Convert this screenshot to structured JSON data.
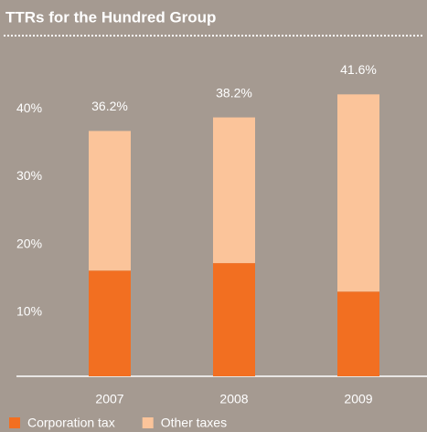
{
  "chart_data": {
    "type": "stacked_bar",
    "title": "TTRs for the Hundred Group",
    "categories": [
      "2007",
      "2008",
      "2009"
    ],
    "series": [
      {
        "name": "Corporation tax",
        "color": "#f26f21",
        "values": [
          15.6,
          16.7,
          12.5
        ]
      },
      {
        "name": "Other taxes",
        "color": "#fbc49a",
        "values": [
          20.6,
          21.5,
          29.1
        ]
      }
    ],
    "totals": [
      36.2,
      38.2,
      41.6
    ],
    "total_labels": [
      "36.2%",
      "38.2%",
      "41.6%"
    ],
    "ylim": [
      0,
      45
    ],
    "yticks": [
      {
        "value": 10,
        "label": "10%"
      },
      {
        "value": 20,
        "label": "20%"
      },
      {
        "value": 30,
        "label": "30%"
      },
      {
        "value": 40,
        "label": "40%"
      }
    ],
    "legend": "bottom-left"
  }
}
